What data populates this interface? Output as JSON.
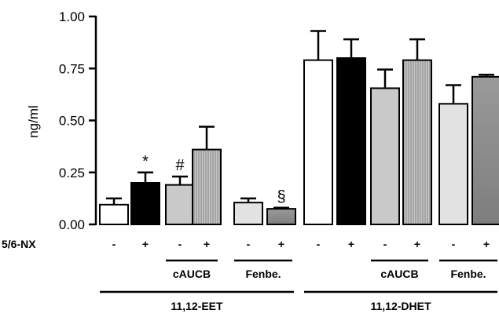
{
  "chart_data": {
    "type": "bar",
    "ylabel": "ng/ml",
    "ylim": [
      0,
      1.0
    ],
    "yticks": [
      "0.00",
      "0.25",
      "0.50",
      "0.75",
      "1.00"
    ],
    "x_row_label": "5/6-NX",
    "bars": [
      {
        "sign": "-",
        "value": 0.095,
        "error": 0.03,
        "fill": "white",
        "annotation": ""
      },
      {
        "sign": "+",
        "value": 0.2,
        "error": 0.05,
        "fill": "black",
        "annotation": "*"
      },
      {
        "sign": "-",
        "value": 0.19,
        "error": 0.04,
        "fill": "lightgray",
        "annotation": "#"
      },
      {
        "sign": "+",
        "value": 0.36,
        "error": 0.11,
        "fill": "hatched",
        "annotation": ""
      },
      {
        "sign": "-",
        "value": 0.105,
        "error": 0.02,
        "fill": "lightgray2",
        "annotation": ""
      },
      {
        "sign": "+",
        "value": 0.075,
        "error": 0.005,
        "fill": "darkgray",
        "annotation": "§"
      },
      {
        "sign": "-",
        "value": 0.79,
        "error": 0.14,
        "fill": "white",
        "annotation": ""
      },
      {
        "sign": "+",
        "value": 0.8,
        "error": 0.09,
        "fill": "black",
        "annotation": ""
      },
      {
        "sign": "-",
        "value": 0.655,
        "error": 0.09,
        "fill": "lightgray",
        "annotation": ""
      },
      {
        "sign": "+",
        "value": 0.79,
        "error": 0.1,
        "fill": "hatched",
        "annotation": ""
      },
      {
        "sign": "-",
        "value": 0.58,
        "error": 0.09,
        "fill": "lightgray2",
        "annotation": ""
      },
      {
        "sign": "+",
        "value": 0.71,
        "error": 0.01,
        "fill": "darkgray",
        "annotation": ""
      }
    ],
    "subgroups": [
      {
        "label": "cAUCB",
        "from": 2,
        "to": 3
      },
      {
        "label": "Fenbe.",
        "from": 4,
        "to": 5
      },
      {
        "label": "cAUCB",
        "from": 8,
        "to": 9
      },
      {
        "label": "Fenbe.",
        "from": 10,
        "to": 11
      }
    ],
    "groups": [
      {
        "label": "11,12-EET",
        "from": 0,
        "to": 5
      },
      {
        "label": "11,12-DHET",
        "from": 6,
        "to": 11
      }
    ]
  }
}
